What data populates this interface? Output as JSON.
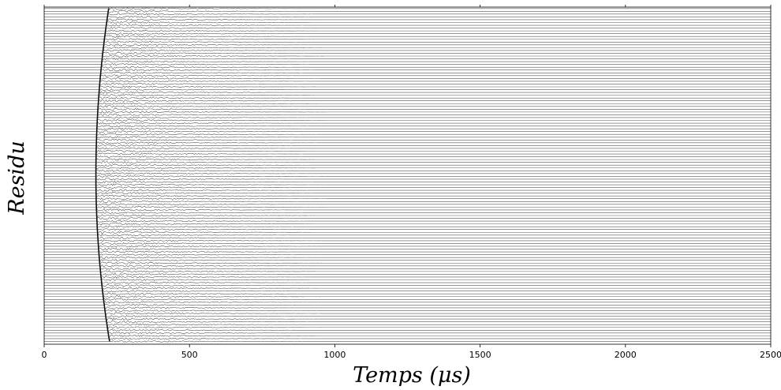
{
  "chart_data": {
    "type": "line",
    "title": "",
    "xlabel": "Temps (μs)",
    "ylabel": "Residu",
    "xlim": [
      0,
      2500
    ],
    "x_ticks": [
      0,
      500,
      1000,
      1500,
      2000,
      2500
    ],
    "y_tick_labels_shown": false,
    "grid": false,
    "legend": "none",
    "trace_count": 120,
    "series_description_values": {
      "first_arrival_time_us": {
        "top": 222,
        "middle": 178,
        "bottom": 225
      },
      "signal_visible_until_us": 980
    },
    "colors": {
      "trace": "#555555",
      "arrival": "#111111",
      "axis": "#000000"
    }
  }
}
